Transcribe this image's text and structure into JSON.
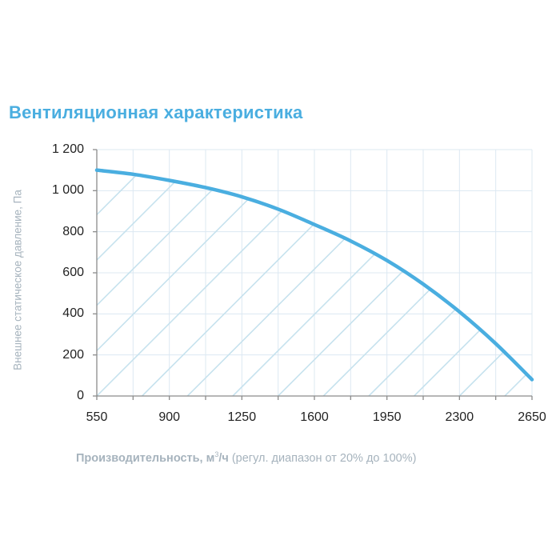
{
  "title": "Вентиляционная характеристика",
  "axes": {
    "ylabel": "Внешнее статическое давление, Па",
    "xlabel_bold": "Производительность, м",
    "xlabel_sup": "3",
    "xlabel_bold_tail": "/ч",
    "xlabel_note": " (регул. диапазон от 20% до 100%)",
    "yticks": [
      "1 200",
      "1 000",
      "800",
      "600",
      "400",
      "200",
      "0"
    ],
    "xticks": [
      "550",
      "900",
      "1250",
      "1600",
      "1950",
      "2300",
      "2650"
    ]
  },
  "colors": {
    "curve": "#4aaee0",
    "hatch": "#c6e2ee",
    "grid": "#dce8f2",
    "axis": "#8c8c8c",
    "title": "#4aaee0",
    "label": "#a6b3bd"
  },
  "chart_data": {
    "type": "area",
    "title": "Вентиляционная характеристика",
    "xlabel": "Производительность, м³/ч (регул. диапазон от 20% до 100%)",
    "ylabel": "Внешнее статическое давление, Па",
    "x": [
      550,
      725,
      900,
      1075,
      1250,
      1425,
      1600,
      1775,
      1950,
      2125,
      2300,
      2475,
      2650
    ],
    "series": [
      {
        "name": "Вентиляционная характеристика",
        "values": [
          1100,
          1080,
          1050,
          1015,
          970,
          910,
          835,
          755,
          660,
          545,
          410,
          255,
          80
        ]
      }
    ],
    "xlim": [
      550,
      2650
    ],
    "ylim": [
      0,
      1200
    ],
    "x_tick_labels": [
      550,
      900,
      1250,
      1600,
      1950,
      2300,
      2650
    ],
    "y_tick_labels": [
      0,
      200,
      400,
      600,
      800,
      1000,
      1200
    ],
    "x_minor_step": 175,
    "grid": true,
    "fill": "diagonal hatch under curve",
    "legend": null
  }
}
